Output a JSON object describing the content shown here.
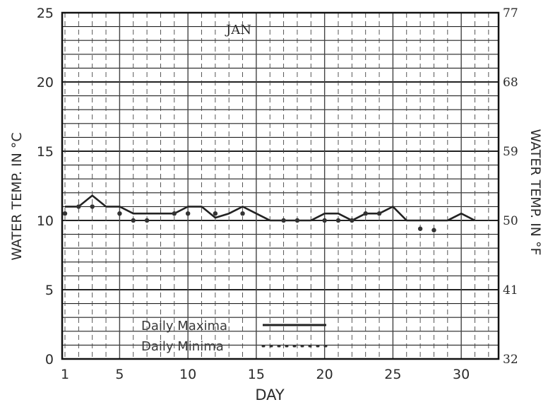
{
  "chart_data": {
    "type": "line",
    "title": "JAN",
    "xlabel": "DAY",
    "ylabel_left": "WATER TEMP. IN °C",
    "ylabel_right": "WATER TEMP. IN °F",
    "x_ticks": [
      "1",
      "5",
      "10",
      "15",
      "20",
      "25",
      "30"
    ],
    "x_tick_values": [
      1,
      5,
      10,
      15,
      20,
      25,
      30
    ],
    "y_ticks_left": [
      "0",
      "5",
      "10",
      "15",
      "20",
      "25"
    ],
    "y_tick_values_left": [
      0,
      5,
      10,
      15,
      20,
      25
    ],
    "y_ticks_right": [
      "32",
      "41",
      "50",
      "59",
      "68",
      "77"
    ],
    "xlim": [
      1,
      32
    ],
    "ylim": [
      0,
      25
    ],
    "grid": true,
    "legend_position": "bottom-center",
    "series": [
      {
        "name": "Daily Maxima",
        "style": "solid",
        "x": [
          1,
          2,
          3,
          4,
          5,
          6,
          7,
          8,
          9,
          10,
          11,
          12,
          13,
          14,
          15,
          16,
          17,
          18,
          19,
          20,
          21,
          22,
          23,
          24,
          25,
          26,
          27,
          28,
          29,
          30,
          31
        ],
        "values": [
          11.0,
          11.0,
          11.8,
          11.0,
          11.0,
          10.5,
          10.5,
          10.5,
          10.5,
          11.0,
          11.0,
          10.2,
          10.5,
          11.0,
          10.5,
          10.0,
          10.0,
          10.0,
          10.0,
          10.5,
          10.5,
          10.0,
          10.5,
          10.5,
          11.0,
          10.0,
          10.0,
          10.0,
          10.0,
          10.5,
          10.0
        ]
      },
      {
        "name": "Daily Minima",
        "style": "dotted",
        "x": [
          1,
          2,
          3,
          5,
          6,
          7,
          9,
          10,
          12,
          14,
          17,
          18,
          20,
          21,
          22,
          23,
          24,
          27,
          28
        ],
        "values": [
          10.5,
          11.0,
          11.0,
          10.5,
          10.0,
          10.0,
          10.5,
          10.5,
          10.5,
          10.5,
          10.0,
          10.0,
          10.0,
          10.0,
          10.0,
          10.5,
          10.5,
          9.4,
          9.3
        ]
      }
    ]
  }
}
